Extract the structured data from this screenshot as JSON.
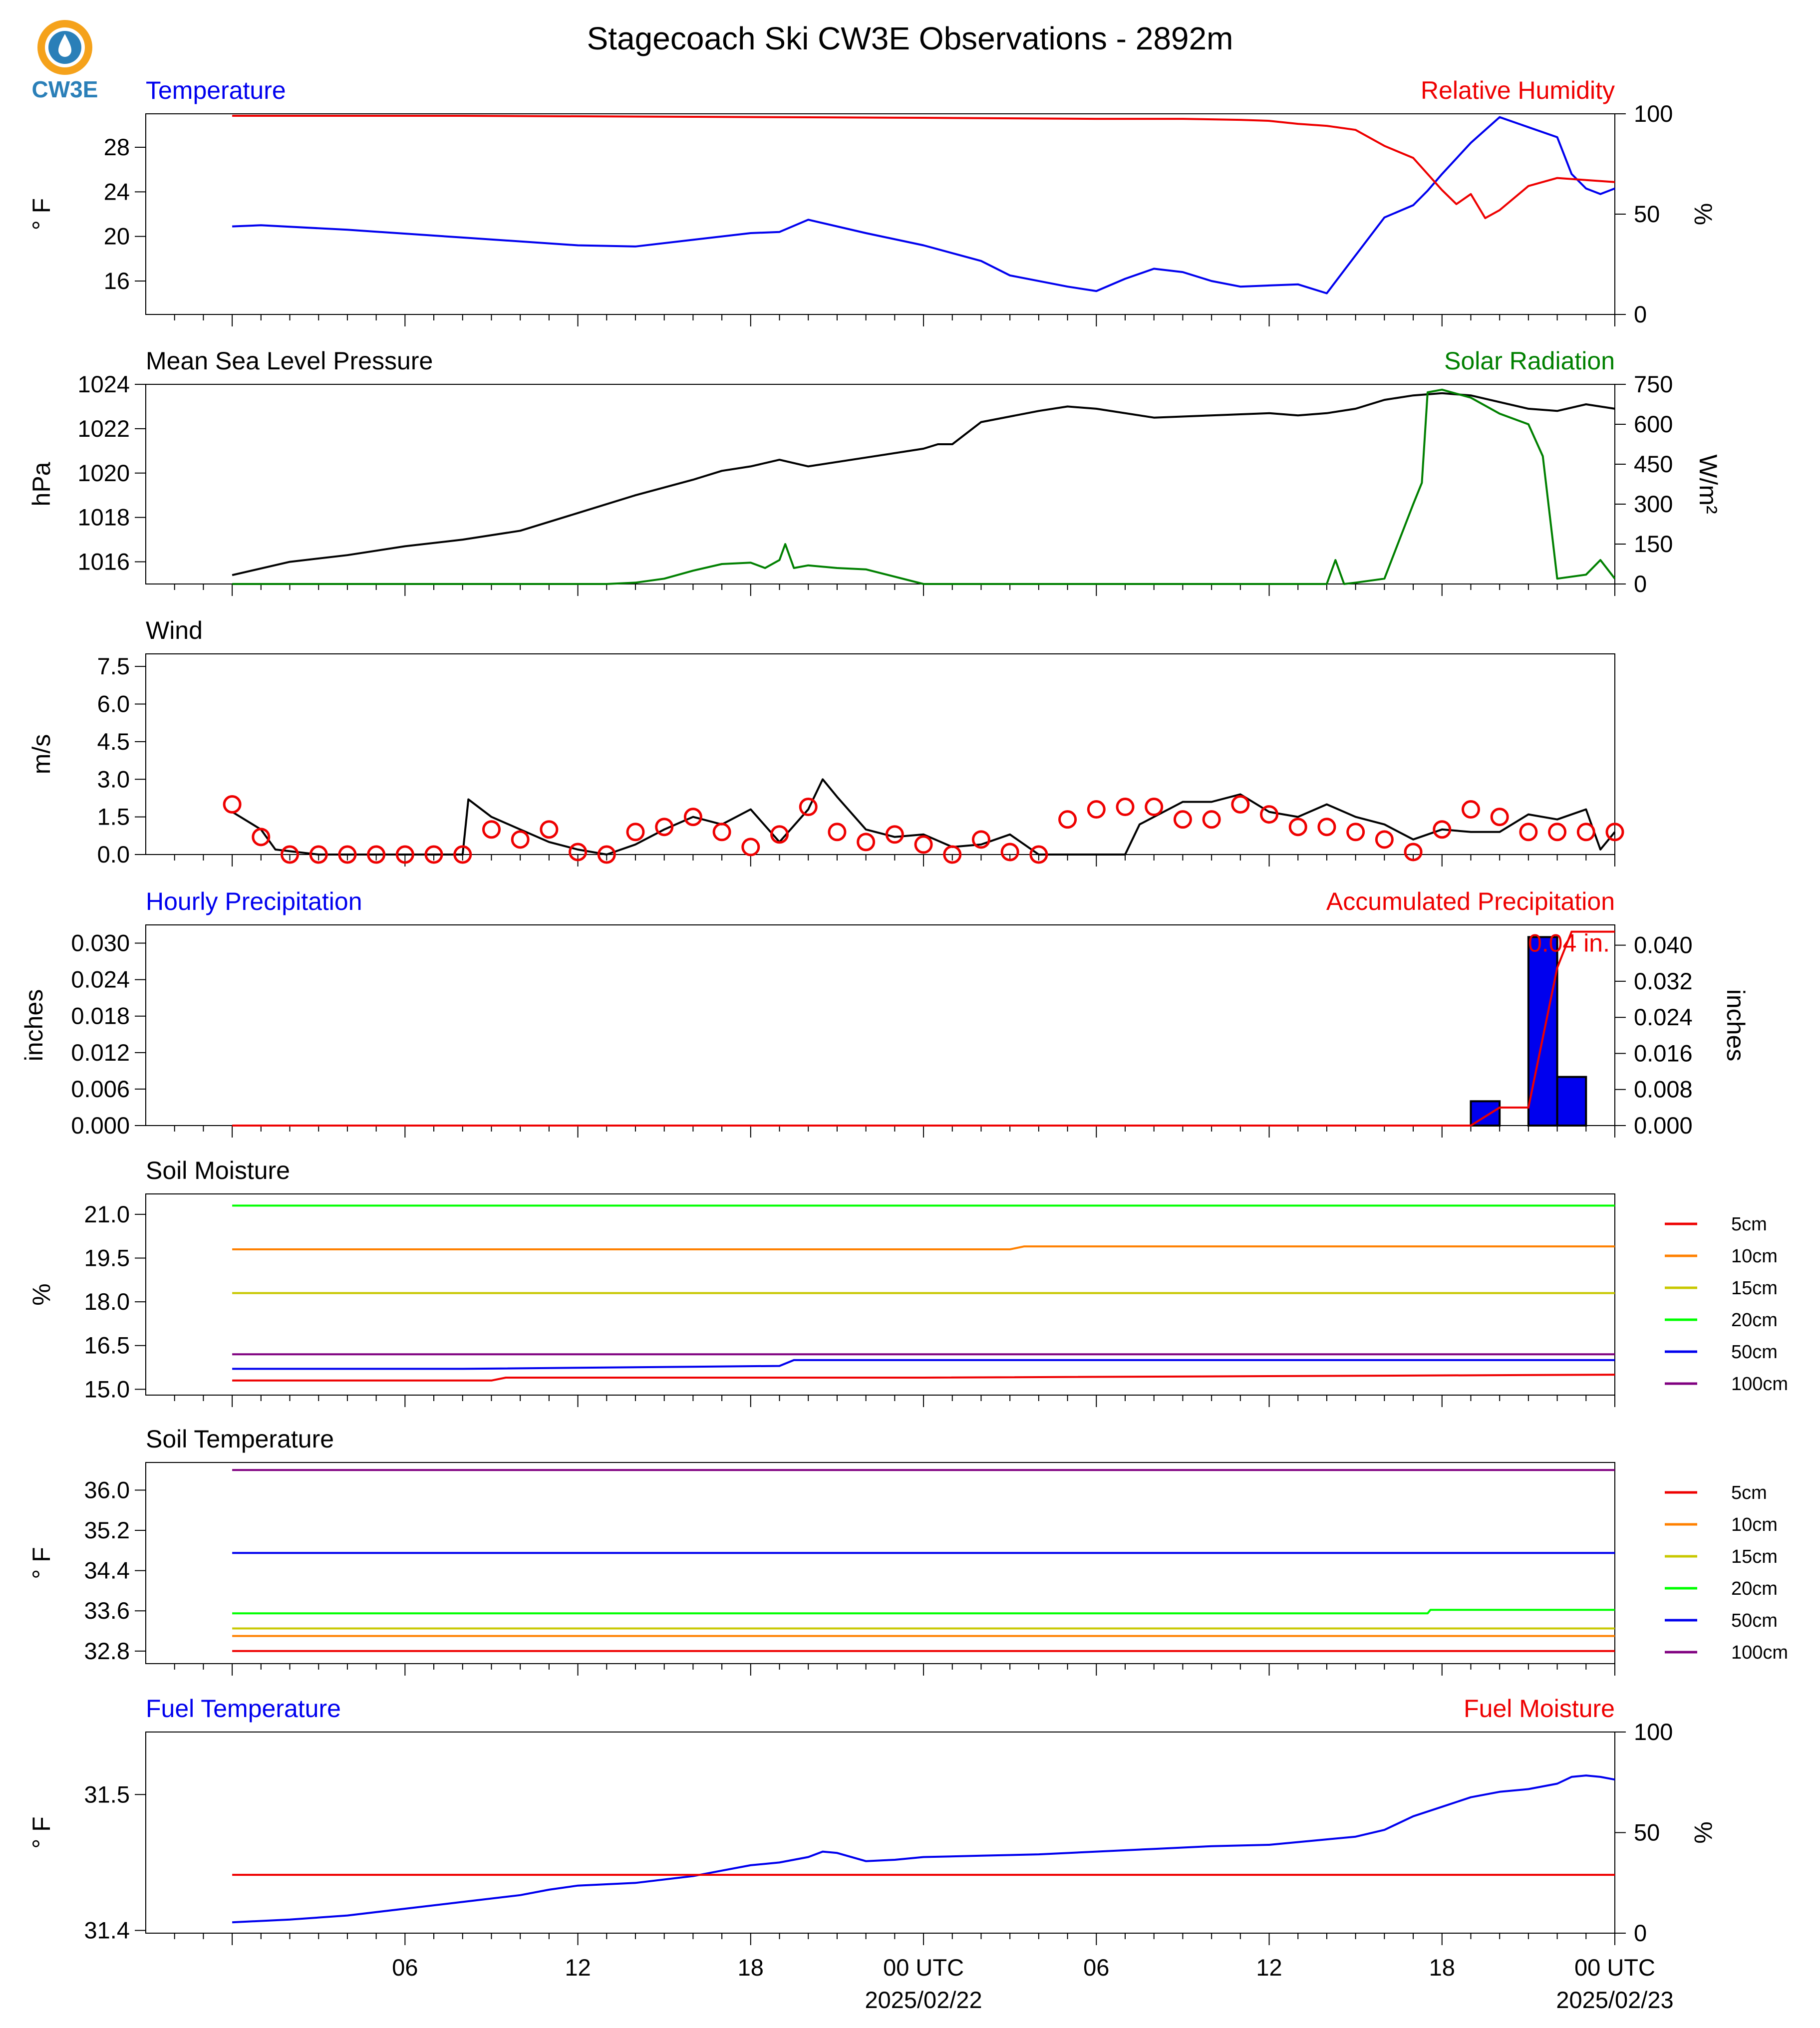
{
  "page": {
    "title": "Stagecoach Ski CW3E Observations - 2892m",
    "logo_text": "CW3E"
  },
  "colors": {
    "blue": "#0000ee",
    "red": "#ee0000",
    "green": "#008000",
    "black": "#000000",
    "orange": "#ff8000",
    "olive": "#c8c800",
    "lime": "#00ff00",
    "purple": "#800080"
  },
  "time_axis": {
    "labels": [
      "06",
      "12",
      "18",
      "00 UTC",
      "06",
      "12",
      "18",
      "00 UTC"
    ],
    "date_labels": [
      "2025/02/22",
      "2025/02/23"
    ],
    "tick_hours": [
      6,
      12,
      18,
      24,
      30,
      36,
      42,
      48
    ]
  },
  "chart_data": [
    {
      "id": "temp_rh",
      "type": "line",
      "left_title": "Temperature",
      "right_title": "Relative Humidity",
      "ylabel": "° F",
      "y2label": "%",
      "ylim": [
        13,
        31
      ],
      "y2lim": [
        0,
        100
      ],
      "yticks": [
        "16",
        "20",
        "24",
        "28"
      ],
      "y2ticks": [
        "0",
        "50",
        "100"
      ],
      "series": [
        {
          "axis": "left",
          "color": "blue",
          "x": [
            0,
            1,
            4,
            8,
            12,
            14,
            16,
            18,
            19,
            20,
            22,
            24,
            26,
            27,
            29,
            30,
            31,
            32,
            33,
            34,
            35,
            36,
            37,
            38,
            39,
            40,
            41,
            41.5,
            42,
            43,
            44,
            45,
            46,
            46.5,
            47,
            47.5,
            48
          ],
          "y": [
            20.9,
            21,
            20.6,
            19.9,
            19.2,
            19.1,
            19.7,
            20.3,
            20.4,
            21.5,
            20.3,
            19.2,
            17.8,
            16.5,
            15.5,
            15.1,
            16.2,
            17.1,
            16.8,
            16,
            15.5,
            15.6,
            15.7,
            14.9,
            18.3,
            21.7,
            22.8,
            24.1,
            25.6,
            28.4,
            30.7,
            29.8,
            28.9,
            25.6,
            24.3,
            23.8,
            24.3
          ]
        },
        {
          "axis": "right",
          "color": "red",
          "x": [
            0,
            8,
            16,
            24,
            30,
            33,
            35,
            36,
            37,
            38,
            39,
            40,
            41,
            41.5,
            42,
            42.5,
            43,
            43.5,
            44,
            45,
            46,
            47,
            48
          ],
          "y": [
            99,
            99,
            98.5,
            98,
            97.5,
            97.5,
            97,
            96.5,
            95,
            94,
            92,
            84,
            78,
            70,
            62,
            55,
            60,
            48,
            52,
            64,
            68,
            67,
            66
          ]
        }
      ]
    },
    {
      "id": "mslp_solar",
      "type": "line",
      "left_title": "Mean Sea Level Pressure",
      "right_title": "Solar Radiation",
      "ylabel": "hPa",
      "y2label": "W/m²",
      "ylim": [
        1015,
        1024
      ],
      "y2lim": [
        0,
        750
      ],
      "yticks": [
        "1016",
        "1018",
        "1020",
        "1022",
        "1024"
      ],
      "y2ticks": [
        "0",
        "150",
        "300",
        "450",
        "600",
        "750"
      ],
      "series": [
        {
          "axis": "left",
          "color": "black",
          "x": [
            0,
            2,
            4,
            6,
            8,
            10,
            12,
            14,
            16,
            17,
            18,
            19,
            20,
            22,
            24,
            24.5,
            25,
            26,
            28,
            29,
            30,
            32,
            34,
            36,
            37,
            38,
            39,
            40,
            41,
            42,
            43,
            44,
            45,
            46,
            47,
            48
          ],
          "y": [
            1015.4,
            1016,
            1016.3,
            1016.7,
            1017,
            1017.4,
            1018.2,
            1019,
            1019.7,
            1020.1,
            1020.3,
            1020.6,
            1020.3,
            1020.7,
            1021.1,
            1021.3,
            1021.3,
            1022.3,
            1022.8,
            1023,
            1022.9,
            1022.5,
            1022.6,
            1022.7,
            1022.6,
            1022.7,
            1022.9,
            1023.3,
            1023.5,
            1023.6,
            1023.5,
            1023.2,
            1022.9,
            1022.8,
            1023.1,
            1022.9
          ]
        },
        {
          "axis": "right",
          "color": "green",
          "x": [
            0,
            13,
            14,
            15,
            16,
            17,
            18,
            18.5,
            19,
            19.2,
            19.5,
            20,
            21,
            22,
            24,
            26,
            38,
            38.3,
            38.6,
            39,
            40,
            40.5,
            41,
            41.3,
            41.5,
            42,
            43,
            44,
            45,
            45.5,
            46,
            47,
            47.5,
            48
          ],
          "y": [
            0,
            0,
            5,
            20,
            50,
            75,
            80,
            60,
            90,
            150,
            60,
            70,
            60,
            55,
            0,
            0,
            0,
            90,
            0,
            5,
            20,
            160,
            300,
            380,
            720,
            730,
            700,
            640,
            600,
            480,
            20,
            35,
            90,
            20
          ]
        }
      ]
    },
    {
      "id": "wind",
      "type": "line",
      "left_title": "Wind",
      "ylabel": "m/s",
      "ylim": [
        0,
        8
      ],
      "yticks": [
        "0.0",
        "1.5",
        "3.0",
        "4.5",
        "6.0",
        "7.5"
      ],
      "series": [
        {
          "axis": "left",
          "color": "black",
          "x": [
            0,
            1,
            1.5,
            3,
            8,
            8.2,
            9,
            10,
            11,
            12,
            13,
            14,
            15,
            16,
            17,
            18,
            19,
            20,
            20.5,
            21,
            22,
            23,
            24,
            25,
            26,
            27,
            28,
            29,
            30,
            31,
            31.5,
            32,
            33,
            34,
            35,
            36,
            37,
            38,
            39,
            40,
            41,
            42,
            43,
            44,
            45,
            46,
            47,
            47.5,
            48
          ],
          "y": [
            1.7,
            1.0,
            0.2,
            0,
            0,
            2.2,
            1.5,
            1.0,
            0.5,
            0.2,
            0,
            0.4,
            1.0,
            1.5,
            1.2,
            1.8,
            0.5,
            1.8,
            3.0,
            2.3,
            1.0,
            0.7,
            0.8,
            0.3,
            0.4,
            0.8,
            0,
            0,
            0,
            0,
            1.2,
            1.5,
            2.1,
            2.1,
            2.4,
            1.7,
            1.5,
            2.0,
            1.5,
            1.2,
            0.6,
            1.0,
            0.9,
            0.9,
            1.6,
            1.4,
            1.8,
            0.2,
            0.9
          ]
        },
        {
          "axis": "left",
          "color": "red",
          "marker": "circle",
          "x": [
            0,
            1,
            2,
            3,
            4,
            5,
            6,
            7,
            8,
            9,
            10,
            11,
            12,
            13,
            14,
            15,
            16,
            17,
            18,
            19,
            20,
            21,
            22,
            23,
            24,
            25,
            26,
            27,
            28,
            29,
            30,
            31,
            32,
            33,
            34,
            35,
            36,
            37,
            38,
            39,
            40,
            41,
            42,
            43,
            44,
            45,
            46,
            47,
            48
          ],
          "y": [
            2.0,
            0.7,
            0.0,
            0.0,
            0.0,
            0.0,
            0.0,
            0.0,
            0.0,
            1.0,
            0.6,
            1.0,
            0.1,
            0.0,
            0.9,
            1.1,
            1.5,
            0.9,
            0.3,
            0.8,
            1.9,
            0.9,
            0.5,
            0.8,
            0.4,
            0.0,
            0.6,
            0.1,
            0.0,
            1.4,
            1.8,
            1.9,
            1.9,
            1.4,
            1.4,
            2.0,
            1.6,
            1.1,
            1.1,
            0.9,
            0.6,
            0.1,
            1.0,
            1.8,
            1.5,
            0.9,
            0.9,
            0.9,
            0.9
          ]
        }
      ]
    },
    {
      "id": "precip",
      "type": "bar",
      "left_title": "Hourly Precipitation",
      "right_title": "Accumulated Precipitation",
      "ylabel": "inches",
      "y2label": "inches",
      "ylim": [
        0,
        0.033
      ],
      "y2lim": [
        0,
        0.0445
      ],
      "yticks": [
        "0.000",
        "0.006",
        "0.012",
        "0.018",
        "0.024",
        "0.030"
      ],
      "y2ticks": [
        "0.000",
        "0.008",
        "0.016",
        "0.024",
        "0.032",
        "0.040"
      ],
      "bars": {
        "color": "blue",
        "x": [
          43.5,
          45.5,
          46.5
        ],
        "values": [
          0.004,
          0.031,
          0.008
        ]
      },
      "accum": {
        "color": "red",
        "x": [
          0,
          43,
          44,
          45,
          46,
          46.5,
          48
        ],
        "y": [
          0,
          0,
          0.004,
          0.004,
          0.035,
          0.043,
          0.043
        ]
      },
      "annotation": "0.04 in."
    },
    {
      "id": "soil_moisture",
      "type": "line",
      "left_title": "Soil Moisture",
      "ylabel": "%",
      "ylim": [
        14.8,
        21.7
      ],
      "yticks": [
        "15.0",
        "16.5",
        "18.0",
        "19.5",
        "21.0"
      ],
      "legend": [
        "5cm",
        "10cm",
        "15cm",
        "20cm",
        "50cm",
        "100cm"
      ],
      "series": [
        {
          "name": "5cm",
          "color": "red",
          "x": [
            0,
            9,
            9.5,
            24,
            48
          ],
          "y": [
            15.3,
            15.3,
            15.4,
            15.4,
            15.5
          ]
        },
        {
          "name": "10cm",
          "color": "orange",
          "x": [
            0,
            11,
            20,
            27,
            27.5,
            48
          ],
          "y": [
            19.8,
            19.8,
            19.8,
            19.8,
            19.9,
            19.9
          ]
        },
        {
          "name": "15cm",
          "color": "olive",
          "x": [
            0,
            48
          ],
          "y": [
            18.3,
            18.3
          ]
        },
        {
          "name": "20cm",
          "color": "lime",
          "x": [
            0,
            48
          ],
          "y": [
            21.3,
            21.3
          ]
        },
        {
          "name": "50cm",
          "color": "blue",
          "x": [
            0,
            8,
            19,
            19.5,
            48
          ],
          "y": [
            15.7,
            15.7,
            15.8,
            16.0,
            16.0
          ]
        },
        {
          "name": "100cm",
          "color": "purple",
          "x": [
            0,
            48
          ],
          "y": [
            16.2,
            16.2
          ]
        }
      ]
    },
    {
      "id": "soil_temp",
      "type": "line",
      "left_title": "Soil Temperature",
      "ylabel": "° F",
      "ylim": [
        32.55,
        36.55
      ],
      "yticks": [
        "32.8",
        "33.6",
        "34.4",
        "35.2",
        "36.0"
      ],
      "legend": [
        "5cm",
        "10cm",
        "15cm",
        "20cm",
        "50cm",
        "100cm"
      ],
      "series": [
        {
          "name": "5cm",
          "color": "red",
          "x": [
            0,
            48
          ],
          "y": [
            32.8,
            32.8
          ]
        },
        {
          "name": "10cm",
          "color": "orange",
          "x": [
            0,
            48
          ],
          "y": [
            33.1,
            33.1
          ]
        },
        {
          "name": "15cm",
          "color": "olive",
          "x": [
            0,
            48
          ],
          "y": [
            33.25,
            33.25
          ]
        },
        {
          "name": "20cm",
          "color": "lime",
          "x": [
            0,
            41.5,
            41.6,
            48
          ],
          "y": [
            33.55,
            33.55,
            33.62,
            33.62
          ]
        },
        {
          "name": "50cm",
          "color": "blue",
          "x": [
            0,
            48
          ],
          "y": [
            34.75,
            34.75
          ]
        },
        {
          "name": "100cm",
          "color": "purple",
          "x": [
            0,
            48
          ],
          "y": [
            36.4,
            36.4
          ]
        }
      ]
    },
    {
      "id": "fuel",
      "type": "line",
      "left_title": "Fuel Temperature",
      "right_title": "Fuel Moisture",
      "ylabel": "° F",
      "y2label": "%",
      "ylim": [
        31.398,
        31.546
      ],
      "y2lim": [
        0,
        100
      ],
      "yticks": [
        "31.4",
        "31.5"
      ],
      "y2ticks": [
        "0",
        "50",
        "100"
      ],
      "series": [
        {
          "axis": "left",
          "color": "blue",
          "x": [
            0,
            2,
            4,
            6,
            8,
            10,
            11,
            12,
            14,
            16,
            17,
            18,
            19,
            20,
            20.5,
            21,
            22,
            23,
            24,
            26,
            28,
            30,
            32,
            34,
            36,
            38,
            39,
            40,
            41,
            42,
            43,
            44,
            45,
            46,
            46.5,
            47,
            47.5,
            48
          ],
          "y": [
            31.406,
            31.408,
            31.411,
            31.416,
            31.421,
            31.426,
            31.43,
            31.433,
            31.435,
            31.44,
            31.444,
            31.448,
            31.45,
            31.454,
            31.458,
            31.457,
            31.451,
            31.452,
            31.454,
            31.455,
            31.456,
            31.458,
            31.46,
            31.462,
            31.463,
            31.467,
            31.469,
            31.474,
            31.484,
            31.491,
            31.498,
            31.502,
            31.504,
            31.508,
            31.513,
            31.514,
            31.513,
            31.511
          ]
        },
        {
          "axis": "right",
          "color": "red",
          "x": [
            0,
            48
          ],
          "y": [
            29,
            29
          ]
        }
      ]
    }
  ]
}
